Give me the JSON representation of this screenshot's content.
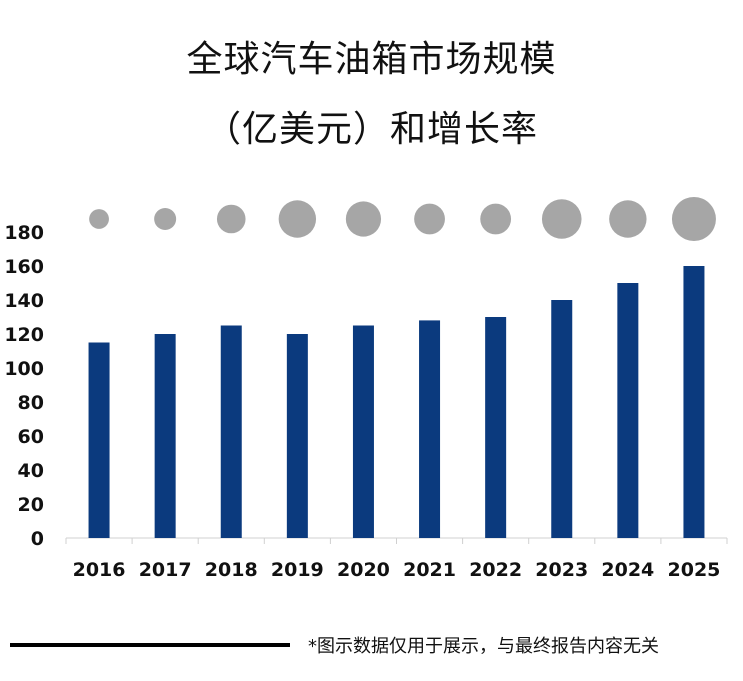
{
  "chart_data": {
    "type": "bar",
    "title_line1": "全球汽车油箱市场规模",
    "title_line2": "（亿美元）和增长率",
    "categories": [
      "2016",
      "2017",
      "2018",
      "2019",
      "2020",
      "2021",
      "2022",
      "2023",
      "2024",
      "2025"
    ],
    "values": [
      115,
      120,
      125,
      120,
      125,
      128,
      130,
      140,
      150,
      160
    ],
    "growth_bubble_relative_size": [
      0.45,
      0.5,
      0.65,
      0.85,
      0.8,
      0.7,
      0.7,
      0.9,
      0.85,
      1.0
    ],
    "ylim": [
      0,
      180
    ],
    "yticks": [
      "0",
      "20",
      "40",
      "60",
      "80",
      "100",
      "120",
      "140",
      "160",
      "180"
    ],
    "bar_color": "#0b3a7e",
    "bubble_color": "#a6a6a6"
  },
  "footnote": "*图示数据仅用于展示，与最终报告内容无关"
}
